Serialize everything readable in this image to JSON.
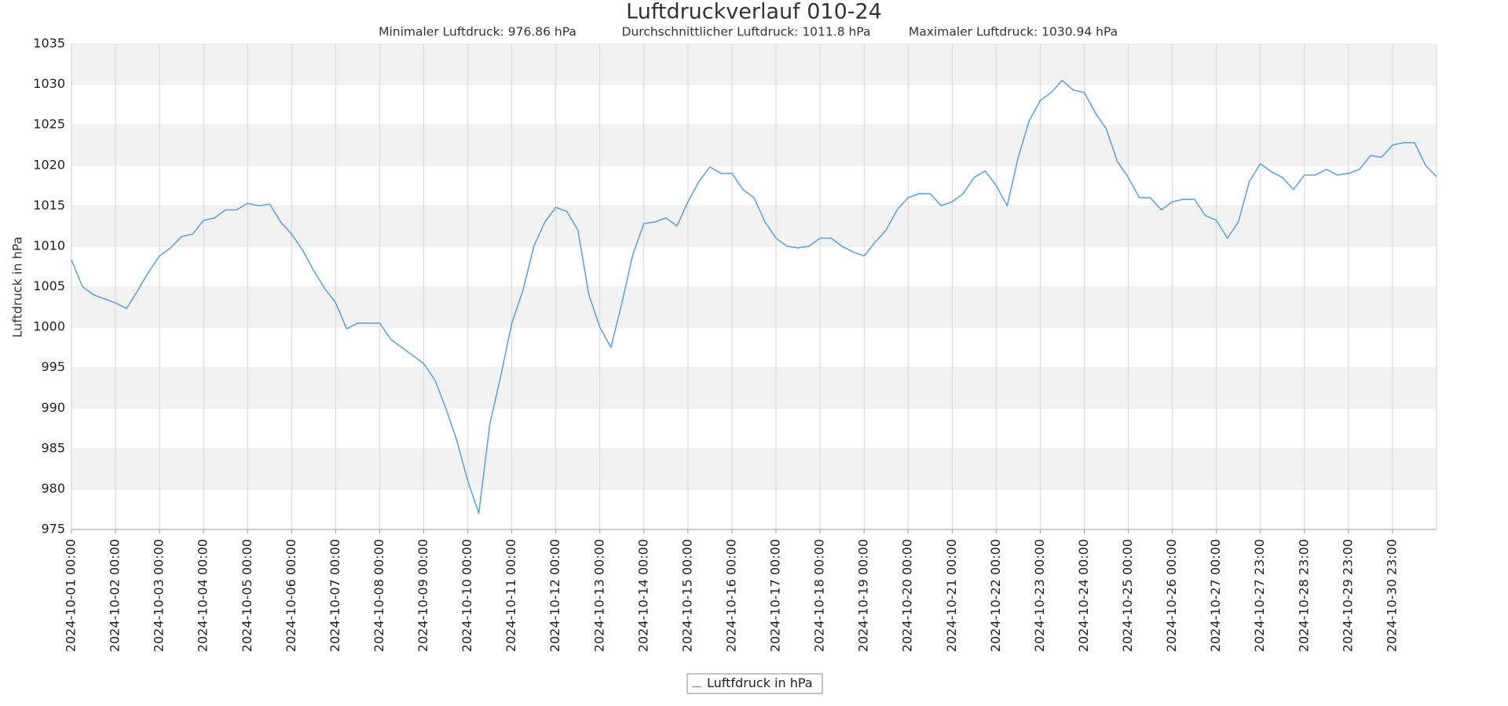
{
  "chart_data": {
    "type": "line",
    "title": "Luftdruckverlauf 010-24",
    "subtitles": [
      "Minimaler Luftdruck: 976.86 hPa",
      "Durchschnittlicher Luftdruck: 1011.8 hPa",
      "Maximaler Luftdruck: 1030.94 hPa"
    ],
    "y_label": "Luftdruck in hPa",
    "x": [
      "2024-10-01 00:00",
      "2024-10-01 06:00",
      "2024-10-01 12:00",
      "2024-10-01 18:00",
      "2024-10-02 00:00",
      "2024-10-02 06:00",
      "2024-10-02 12:00",
      "2024-10-02 18:00",
      "2024-10-03 00:00",
      "2024-10-03 06:00",
      "2024-10-03 12:00",
      "2024-10-03 18:00",
      "2024-10-04 00:00",
      "2024-10-04 06:00",
      "2024-10-04 12:00",
      "2024-10-04 18:00",
      "2024-10-05 00:00",
      "2024-10-05 06:00",
      "2024-10-05 12:00",
      "2024-10-05 18:00",
      "2024-10-06 00:00",
      "2024-10-06 06:00",
      "2024-10-06 12:00",
      "2024-10-06 18:00",
      "2024-10-07 00:00",
      "2024-10-07 06:00",
      "2024-10-07 12:00",
      "2024-10-07 18:00",
      "2024-10-08 00:00",
      "2024-10-08 06:00",
      "2024-10-08 12:00",
      "2024-10-08 18:00",
      "2024-10-09 00:00",
      "2024-10-09 06:00",
      "2024-10-09 12:00",
      "2024-10-09 18:00",
      "2024-10-10 00:00",
      "2024-10-10 06:00",
      "2024-10-10 12:00",
      "2024-10-10 18:00",
      "2024-10-11 00:00",
      "2024-10-11 06:00",
      "2024-10-11 12:00",
      "2024-10-11 18:00",
      "2024-10-12 00:00",
      "2024-10-12 06:00",
      "2024-10-12 12:00",
      "2024-10-12 18:00",
      "2024-10-13 00:00",
      "2024-10-13 06:00",
      "2024-10-13 12:00",
      "2024-10-13 18:00",
      "2024-10-14 00:00",
      "2024-10-14 06:00",
      "2024-10-14 12:00",
      "2024-10-14 18:00",
      "2024-10-15 00:00",
      "2024-10-15 06:00",
      "2024-10-15 12:00",
      "2024-10-15 18:00",
      "2024-10-16 00:00",
      "2024-10-16 06:00",
      "2024-10-16 12:00",
      "2024-10-16 18:00",
      "2024-10-17 00:00",
      "2024-10-17 06:00",
      "2024-10-17 12:00",
      "2024-10-17 18:00",
      "2024-10-18 00:00",
      "2024-10-18 06:00",
      "2024-10-18 12:00",
      "2024-10-18 18:00",
      "2024-10-19 00:00",
      "2024-10-19 06:00",
      "2024-10-19 12:00",
      "2024-10-19 18:00",
      "2024-10-20 00:00",
      "2024-10-20 06:00",
      "2024-10-20 12:00",
      "2024-10-20 18:00",
      "2024-10-21 00:00",
      "2024-10-21 06:00",
      "2024-10-21 12:00",
      "2024-10-21 18:00",
      "2024-10-22 00:00",
      "2024-10-22 06:00",
      "2024-10-22 12:00",
      "2024-10-22 18:00",
      "2024-10-23 00:00",
      "2024-10-23 06:00",
      "2024-10-23 12:00",
      "2024-10-23 18:00",
      "2024-10-24 00:00",
      "2024-10-24 06:00",
      "2024-10-24 12:00",
      "2024-10-24 18:00",
      "2024-10-25 00:00",
      "2024-10-25 06:00",
      "2024-10-25 12:00",
      "2024-10-25 18:00",
      "2024-10-26 00:00",
      "2024-10-26 06:00",
      "2024-10-26 12:00",
      "2024-10-26 18:00",
      "2024-10-27 00:00",
      "2024-10-27 05:00",
      "2024-10-27 11:00",
      "2024-10-27 17:00",
      "2024-10-27 23:00",
      "2024-10-28 05:00",
      "2024-10-28 11:00",
      "2024-10-28 17:00",
      "2024-10-28 23:00",
      "2024-10-29 05:00",
      "2024-10-29 11:00",
      "2024-10-29 17:00",
      "2024-10-29 23:00",
      "2024-10-30 05:00",
      "2024-10-30 11:00",
      "2024-10-30 17:00",
      "2024-10-30 23:00",
      "2024-10-31 05:00",
      "2024-10-31 11:00",
      "2024-10-31 17:00",
      "2024-10-31 23:00"
    ],
    "xticks": [
      "2024-10-01 00:00",
      "2024-10-02 00:00",
      "2024-10-03 00:00",
      "2024-10-04 00:00",
      "2024-10-05 00:00",
      "2024-10-06 00:00",
      "2024-10-07 00:00",
      "2024-10-08 00:00",
      "2024-10-09 00:00",
      "2024-10-10 00:00",
      "2024-10-11 00:00",
      "2024-10-12 00:00",
      "2024-10-13 00:00",
      "2024-10-14 00:00",
      "2024-10-15 00:00",
      "2024-10-16 00:00",
      "2024-10-17 00:00",
      "2024-10-18 00:00",
      "2024-10-19 00:00",
      "2024-10-20 00:00",
      "2024-10-21 00:00",
      "2024-10-22 00:00",
      "2024-10-23 00:00",
      "2024-10-24 00:00",
      "2024-10-25 00:00",
      "2024-10-26 00:00",
      "2024-10-27 00:00",
      "2024-10-27 23:00",
      "2024-10-28 23:00",
      "2024-10-29 23:00",
      "2024-10-30 23:00"
    ],
    "ylim": [
      975,
      1035
    ],
    "yticks": [
      975,
      980,
      985,
      990,
      995,
      1000,
      1005,
      1010,
      1015,
      1020,
      1025,
      1030,
      1035
    ],
    "grid": true,
    "legend": "bottom",
    "series": [
      {
        "name": "Luftfdruck in hPa",
        "color": "#5ba5e8",
        "values": [
          1008.3,
          1005,
          1004,
          1003.5,
          1003,
          1002.3,
          1004.5,
          1006.8,
          1008.8,
          1009.8,
          1011.2,
          1011.5,
          1013.2,
          1013.5,
          1014.5,
          1014.5,
          1015.3,
          1015,
          1015.2,
          1013,
          1011.5,
          1009.5,
          1007,
          1004.8,
          1003,
          999.8,
          1000.5,
          1000.5,
          1000.5,
          998.5,
          997.5,
          996.5,
          995.5,
          993.5,
          990,
          986,
          981,
          977,
          988,
          994,
          1000.5,
          1004.5,
          1010,
          1013,
          1014.8,
          1014.3,
          1012,
          1004,
          1000,
          997.5,
          1003,
          1009,
          1012.8,
          1013,
          1013.5,
          1012.5,
          1015.5,
          1018,
          1019.8,
          1019,
          1019,
          1017,
          1016,
          1013,
          1011,
          1010,
          1009.8,
          1010,
          1011,
          1011,
          1010,
          1009.3,
          1008.8,
          1010.5,
          1012,
          1014.5,
          1016,
          1016.5,
          1016.5,
          1015,
          1015.5,
          1016.5,
          1018.5,
          1019.3,
          1017.5,
          1015,
          1021,
          1025.5,
          1028,
          1029,
          1030.5,
          1029.3,
          1029,
          1026.5,
          1024.5,
          1020.5,
          1018.5,
          1016,
          1016,
          1014.5,
          1015.5,
          1015.8,
          1015.8,
          1013.8,
          1013.2,
          1011,
          1013,
          1018,
          1020.2,
          1019.2,
          1018.5,
          1017,
          1018.8,
          1018.8,
          1019.5,
          1018.8,
          1019,
          1019.5,
          1021.2,
          1021,
          1022.5,
          1022.8,
          1022.8,
          1020,
          1018.6
        ]
      }
    ]
  }
}
